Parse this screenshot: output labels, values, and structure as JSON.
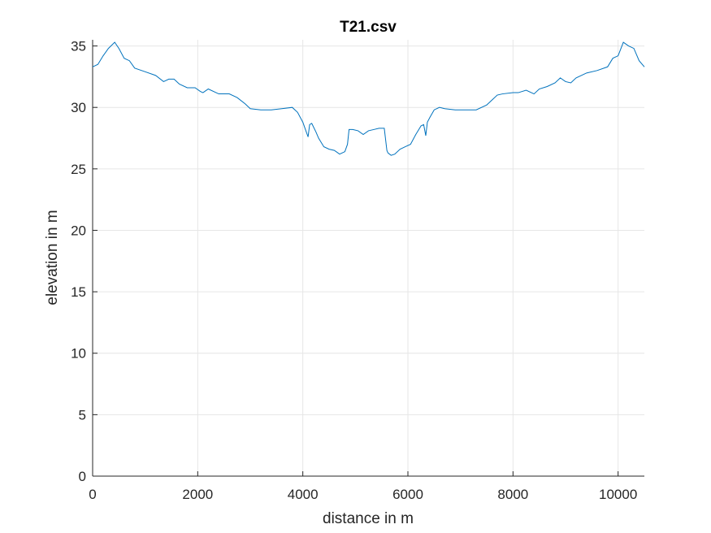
{
  "chart_data": {
    "type": "line",
    "title": "T21.csv",
    "xlabel": "distance in m",
    "ylabel": "elevation in m",
    "xlim": [
      0,
      10500
    ],
    "ylim": [
      0,
      35.5
    ],
    "xticks": [
      "0",
      "2000",
      "4000",
      "6000",
      "8000",
      "10000"
    ],
    "yticks": [
      "0",
      "5",
      "10",
      "15",
      "20",
      "25",
      "30",
      "35"
    ],
    "xtick_values": [
      0,
      2000,
      4000,
      6000,
      8000,
      10000
    ],
    "ytick_values": [
      0,
      5,
      10,
      15,
      20,
      25,
      30,
      35
    ],
    "grid": true,
    "line_color": "#0072BD",
    "series": [
      {
        "x": [
          0,
          100,
          200,
          300,
          420,
          500,
          600,
          700,
          800,
          1000,
          1200,
          1350,
          1450,
          1550,
          1650,
          1800,
          1950,
          2050,
          2100,
          2200,
          2400,
          2600,
          2750,
          2900,
          3000,
          3200,
          3400,
          3600,
          3800,
          3900,
          4000,
          4050,
          4100,
          4130,
          4170,
          4250,
          4300,
          4400,
          4500,
          4600,
          4700,
          4800,
          4850,
          4880,
          4950,
          5050,
          5150,
          5250,
          5350,
          5450,
          5550,
          5600,
          5620,
          5680,
          5750,
          5850,
          5950,
          6050,
          6150,
          6250,
          6300,
          6340,
          6370,
          6420,
          6500,
          6600,
          6700,
          6900,
          7100,
          7300,
          7500,
          7600,
          7700,
          7800,
          8000,
          8100,
          8250,
          8400,
          8500,
          8650,
          8800,
          8900,
          9000,
          9100,
          9200,
          9400,
          9600,
          9800,
          9900,
          10000,
          10100,
          10200,
          10300,
          10400,
          10500
        ],
        "y": [
          33.3,
          33.5,
          34.2,
          34.8,
          35.3,
          34.8,
          34.0,
          33.8,
          33.2,
          32.9,
          32.6,
          32.1,
          32.3,
          32.3,
          31.9,
          31.6,
          31.6,
          31.3,
          31.2,
          31.5,
          31.1,
          31.1,
          30.8,
          30.3,
          29.9,
          29.8,
          29.8,
          29.9,
          30.0,
          29.6,
          28.8,
          28.2,
          27.6,
          28.6,
          28.7,
          28.0,
          27.5,
          26.8,
          26.6,
          26.5,
          26.2,
          26.4,
          27.0,
          28.2,
          28.2,
          28.1,
          27.8,
          28.1,
          28.2,
          28.3,
          28.3,
          26.5,
          26.3,
          26.1,
          26.2,
          26.6,
          26.8,
          27.0,
          27.8,
          28.5,
          28.6,
          27.7,
          28.8,
          29.2,
          29.8,
          30.0,
          29.9,
          29.8,
          29.8,
          29.8,
          30.2,
          30.6,
          31.0,
          31.1,
          31.2,
          31.2,
          31.4,
          31.1,
          31.5,
          31.7,
          32.0,
          32.4,
          32.1,
          32.0,
          32.4,
          32.8,
          33.0,
          33.3,
          34.0,
          34.2,
          35.3,
          35.0,
          34.8,
          33.8,
          33.3
        ]
      }
    ]
  }
}
